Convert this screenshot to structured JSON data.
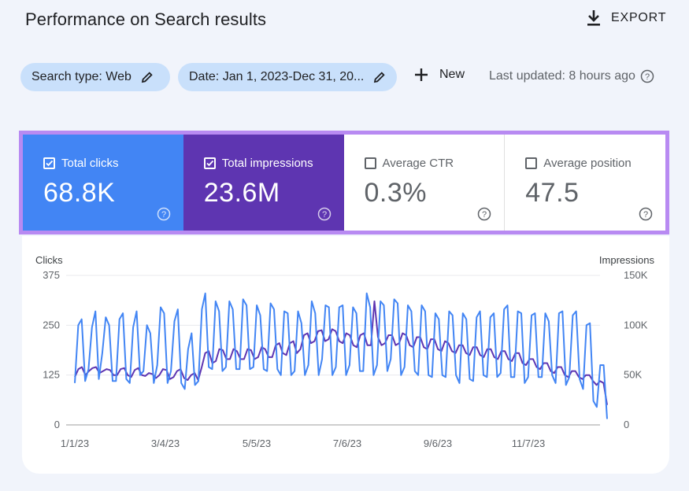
{
  "header": {
    "title": "Performance on Search results",
    "export_label": "EXPORT"
  },
  "filters": {
    "search_type": "Search type: Web",
    "date": "Date: Jan 1, 2023-Dec 31, 20...",
    "new_label": "New",
    "last_updated": "Last updated: 8 hours ago"
  },
  "metrics": [
    {
      "label": "Total clicks",
      "value": "68.8K",
      "checked": true,
      "color": "#4285f4"
    },
    {
      "label": "Total impressions",
      "value": "23.6M",
      "checked": true,
      "color": "#5e35b1"
    },
    {
      "label": "Average CTR",
      "value": "0.3%",
      "checked": false
    },
    {
      "label": "Average position",
      "value": "47.5",
      "checked": false
    }
  ],
  "chart_data": {
    "type": "line",
    "left_axis_label": "Clicks",
    "right_axis_label": "Impressions",
    "left_ticks": [
      "375",
      "250",
      "125",
      "0"
    ],
    "right_ticks": [
      "150K",
      "100K",
      "50K",
      "0"
    ],
    "left_range": [
      0,
      375
    ],
    "right_range": [
      0,
      150000
    ],
    "x_ticks": [
      "1/1/23",
      "3/4/23",
      "5/5/23",
      "7/6/23",
      "9/6/23",
      "11/7/23"
    ],
    "grid": true,
    "series": [
      {
        "name": "Clicks",
        "color": "#4285f4",
        "axis": "left",
        "values": [
          105,
          250,
          265,
          110,
          140,
          245,
          285,
          115,
          180,
          270,
          250,
          110,
          110,
          265,
          280,
          115,
          105,
          245,
          285,
          125,
          135,
          250,
          230,
          105,
          150,
          295,
          280,
          105,
          135,
          260,
          290,
          105,
          90,
          190,
          230,
          100,
          110,
          290,
          330,
          145,
          140,
          310,
          285,
          135,
          145,
          310,
          290,
          140,
          140,
          315,
          300,
          140,
          145,
          300,
          275,
          140,
          135,
          305,
          290,
          140,
          125,
          285,
          280,
          125,
          135,
          285,
          255,
          125,
          150,
          310,
          280,
          125,
          165,
          300,
          295,
          125,
          145,
          295,
          300,
          125,
          150,
          295,
          280,
          135,
          135,
          330,
          295,
          125,
          150,
          310,
          300,
          135,
          165,
          315,
          305,
          125,
          145,
          300,
          285,
          135,
          125,
          300,
          285,
          125,
          120,
          280,
          265,
          125,
          120,
          285,
          275,
          125,
          105,
          280,
          265,
          115,
          110,
          270,
          285,
          125,
          120,
          270,
          280,
          120,
          130,
          290,
          300,
          120,
          120,
          285,
          280,
          105,
          120,
          275,
          280,
          120,
          120,
          280,
          260,
          125,
          105,
          280,
          285,
          100,
          120,
          275,
          285,
          115,
          90,
          250,
          255,
          60,
          45,
          150,
          150,
          15
        ]
      },
      {
        "name": "Impressions",
        "color": "#5e35b1",
        "axis": "right",
        "values": [
          48000,
          56000,
          58000,
          50000,
          54000,
          57000,
          58000,
          52000,
          54000,
          56000,
          55000,
          50000,
          50000,
          56000,
          57000,
          50000,
          48000,
          55000,
          57000,
          50000,
          49000,
          52000,
          51000,
          47000,
          50000,
          56000,
          55000,
          46000,
          48000,
          54000,
          56000,
          47000,
          45000,
          50000,
          52000,
          45000,
          58000,
          72000,
          74000,
          62000,
          64000,
          76000,
          75000,
          66000,
          66000,
          76000,
          74000,
          66000,
          66000,
          76000,
          75000,
          66000,
          68000,
          78000,
          76000,
          68000,
          68000,
          80000,
          82000,
          72000,
          70000,
          82000,
          84000,
          72000,
          76000,
          90000,
          92000,
          82000,
          84000,
          94000,
          95000,
          84000,
          86000,
          96000,
          94000,
          84000,
          82000,
          92000,
          90000,
          80000,
          78000,
          90000,
          92000,
          80000,
          80000,
          124000,
          88000,
          80000,
          82000,
          90000,
          90000,
          80000,
          82000,
          92000,
          90000,
          80000,
          78000,
          88000,
          88000,
          78000,
          76000,
          86000,
          86000,
          76000,
          74000,
          84000,
          82000,
          74000,
          72000,
          80000,
          80000,
          72000,
          70000,
          78000,
          78000,
          70000,
          68000,
          76000,
          76000,
          68000,
          66000,
          74000,
          74000,
          66000,
          64000,
          72000,
          72000,
          62000,
          60000,
          66000,
          66000,
          58000,
          56000,
          62000,
          62000,
          54000,
          52000,
          58000,
          58000,
          50000,
          48000,
          54000,
          54000,
          48000,
          46000,
          50000,
          50000,
          44000,
          40000,
          44000,
          42000,
          20000
        ]
      }
    ]
  }
}
